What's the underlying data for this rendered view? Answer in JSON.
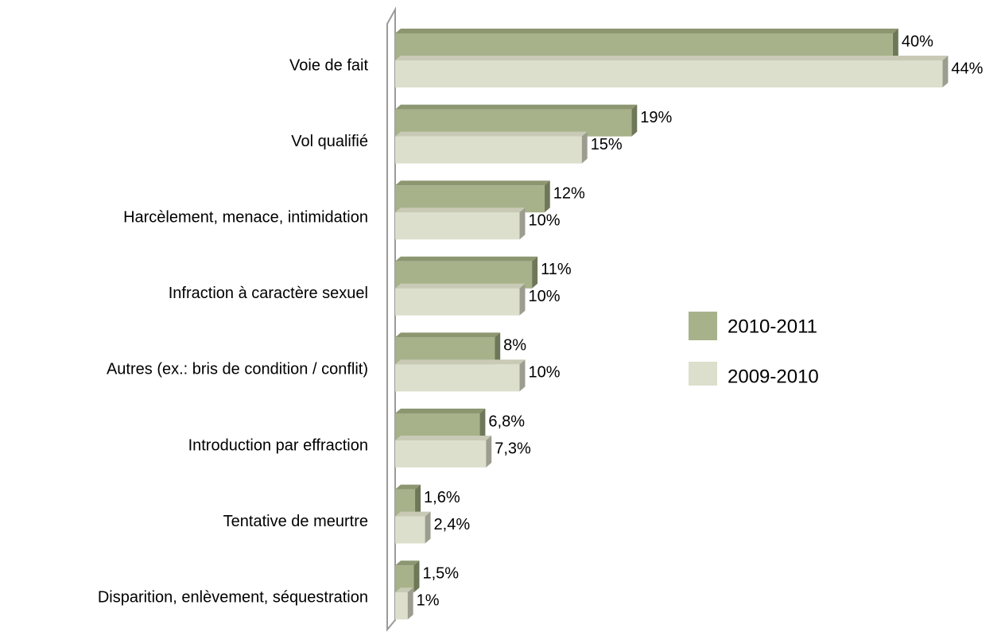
{
  "chart_data": {
    "type": "bar",
    "orientation": "horizontal",
    "categories": [
      "Voie de fait",
      "Vol qualifié",
      "Harcèlement, menace, intimidation",
      "Infraction à caractère sexuel",
      "Autres (ex.: bris de condition / conflit)",
      "Introduction par effraction",
      "Tentative de meurtre",
      "Disparition, enlèvement, séquestration"
    ],
    "series": [
      {
        "name": "2010-2011",
        "color": "#a7b28a",
        "values": [
          40,
          19,
          12,
          11,
          8,
          6.8,
          1.6,
          1.5
        ],
        "value_labels": [
          "40%",
          "19%",
          "12%",
          "11%",
          "8%",
          "6,8%",
          "1,6%",
          "1,5%"
        ]
      },
      {
        "name": "2009-2010",
        "color": "#dcdfcc",
        "values": [
          44,
          15,
          10,
          10,
          10,
          7.3,
          2.4,
          1
        ],
        "value_labels": [
          "44%",
          "15%",
          "10%",
          "10%",
          "10%",
          "7,3%",
          "2,4%",
          "1%"
        ]
      }
    ],
    "xlim": [
      0,
      48
    ]
  }
}
